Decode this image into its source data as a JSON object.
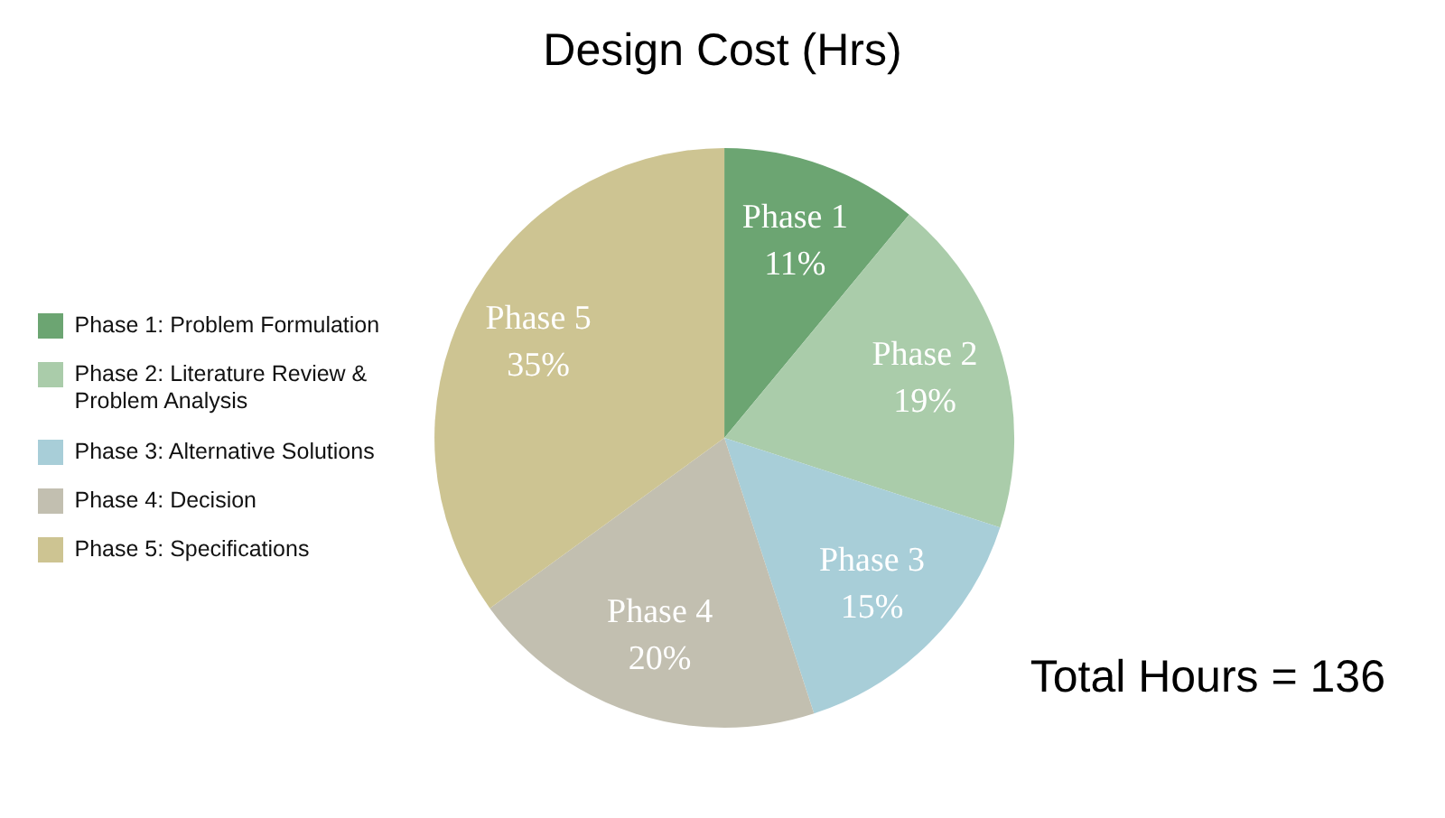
{
  "chart_data": {
    "type": "pie",
    "title": "Design Cost (Hrs)",
    "categories": [
      "Phase 1: Problem Formulation",
      "Phase 2: Literature Review & Problem Analysis",
      "Phase 3: Alternative Solutions",
      "Phase 4: Decision",
      "Phase 5: Specifications"
    ],
    "values": [
      11,
      19,
      15,
      20,
      35
    ],
    "colors": [
      "#6ca572",
      "#aaccaa",
      "#a8ced8",
      "#c2bfb0",
      "#cdc492"
    ],
    "value_labels": [
      "Phase 1\n11%",
      "Phase 2\n19%",
      "Phase 3\n15%",
      "Phase 4\n20%",
      "Phase 5\n35%"
    ],
    "legend": "left",
    "annotations": [
      "Total Hours = 136"
    ]
  }
}
